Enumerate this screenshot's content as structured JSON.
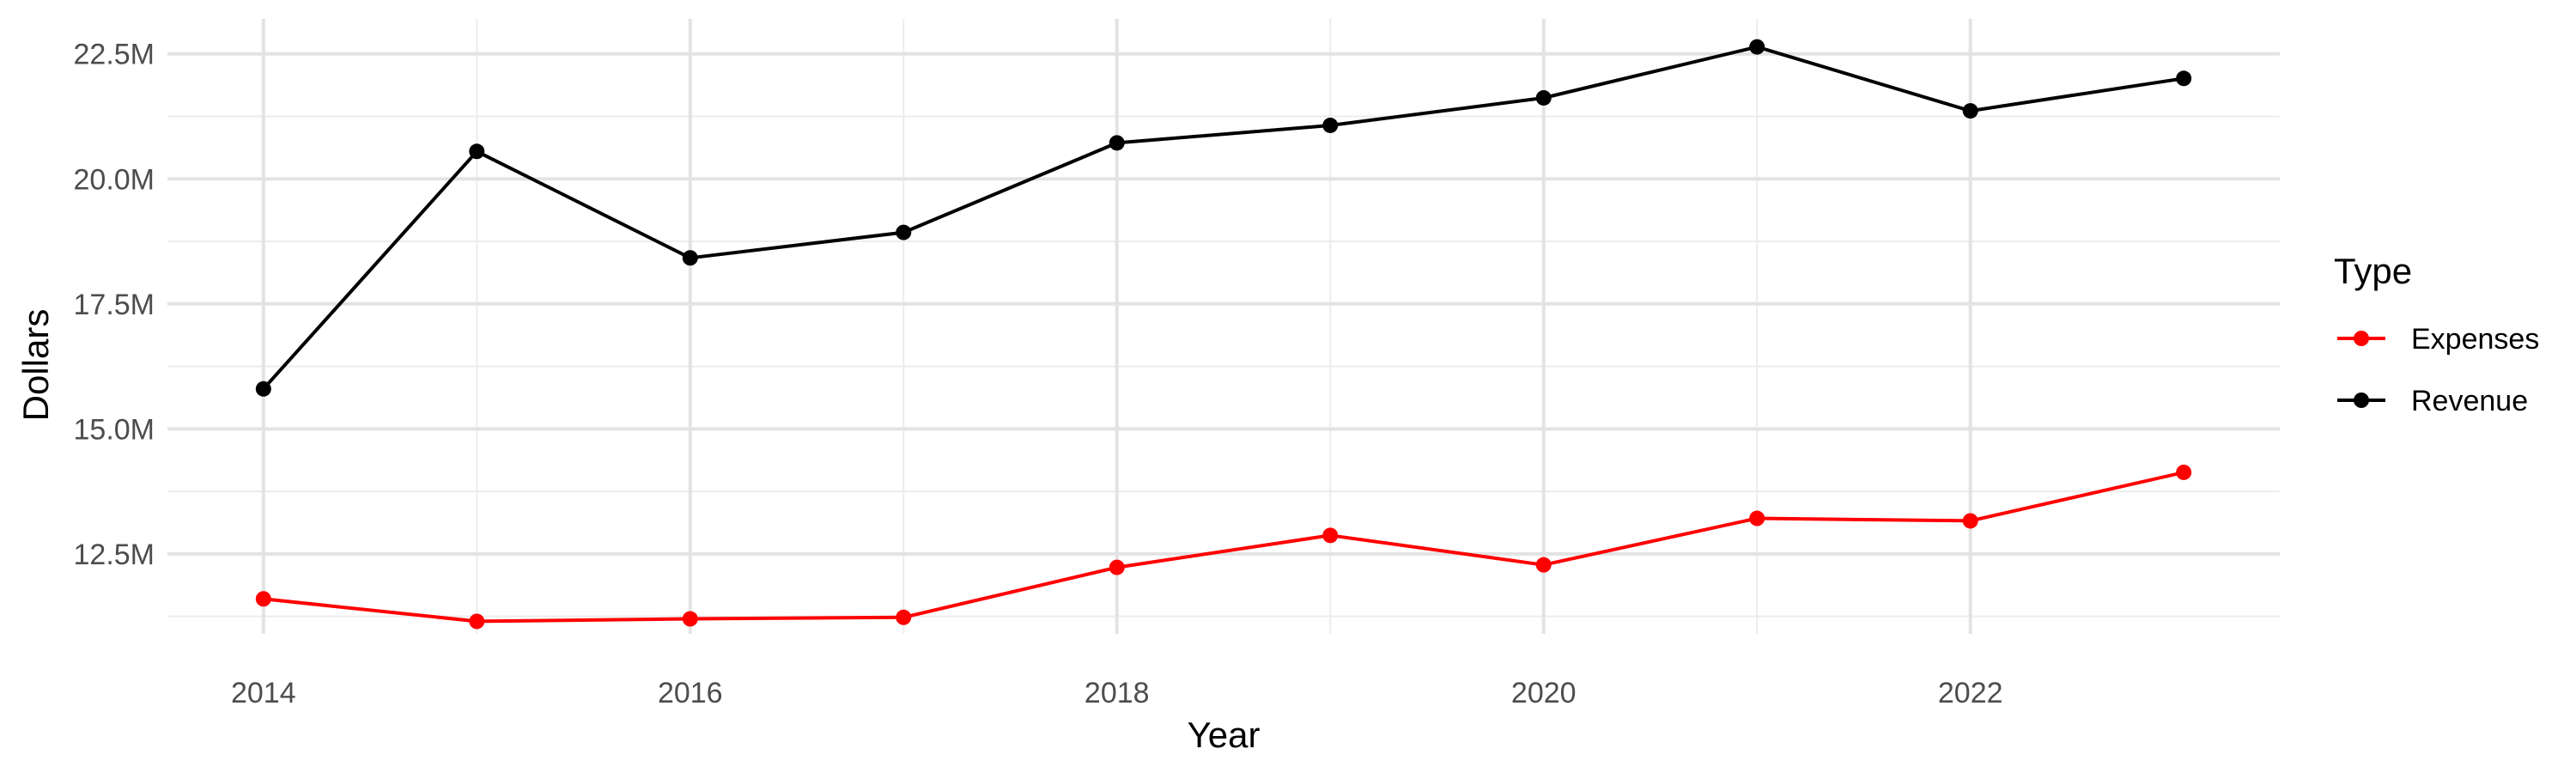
{
  "chart_data": {
    "type": "line",
    "title": "",
    "xlabel": "Year",
    "ylabel": "Dollars",
    "x": [
      2014,
      2015,
      2016,
      2017,
      2018,
      2019,
      2020,
      2021,
      2022,
      2023
    ],
    "xticks": [
      2014,
      2016,
      2018,
      2020,
      2022
    ],
    "xlim": [
      2013.55,
      2023.45
    ],
    "yticks": [
      12500000,
      15000000,
      17500000,
      20000000,
      22500000
    ],
    "ytick_labels": [
      "12.5M",
      "15.0M",
      "17.5M",
      "20.0M",
      "22.5M"
    ],
    "ylim": [
      10900000,
      23200000
    ],
    "grid": true,
    "legend": {
      "title": "Type",
      "position": "right"
    },
    "series": [
      {
        "name": "Expenses",
        "color": "#ff0000",
        "values": [
          11600000,
          11150000,
          11200000,
          11230000,
          12230000,
          12870000,
          12280000,
          13210000,
          13160000,
          14130000
        ]
      },
      {
        "name": "Revenue",
        "color": "#000000",
        "values": [
          15800000,
          20550000,
          18420000,
          18930000,
          20720000,
          21070000,
          21620000,
          22640000,
          21360000,
          22010000
        ]
      }
    ]
  }
}
